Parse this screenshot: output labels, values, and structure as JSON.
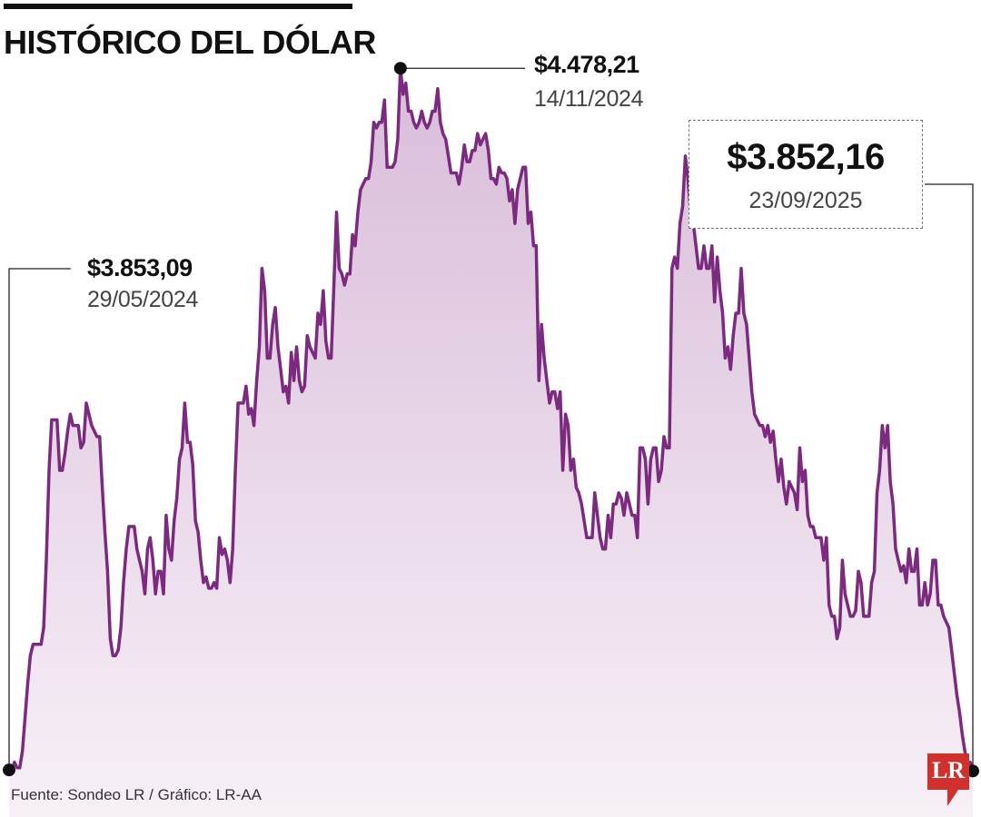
{
  "title": "HISTÓRICO DEL DÓLAR",
  "source": "Fuente: Sondeo LR / Gráfico: LR-AA",
  "logo": {
    "text": "LR",
    "color": "#d0312d"
  },
  "annotations": {
    "start": {
      "value": "$3.853,09",
      "date": "29/05/2024"
    },
    "max": {
      "value": "$4.478,21",
      "date": "14/11/2024"
    },
    "end": {
      "value": "$3.852,16",
      "date": "23/09/2025"
    }
  },
  "colors": {
    "line": "#7b2a7f",
    "fill_top": "#d9bcd9",
    "fill_bottom": "#f7f0f7"
  },
  "chart_data": {
    "type": "area",
    "title": "HISTÓRICO DEL DÓLAR",
    "xlabel": "",
    "ylabel": "",
    "x_start": "29/05/2024",
    "x_end": "23/09/2025",
    "ylim": [
      3850,
      4480
    ],
    "grid": false,
    "series": [
      {
        "values": [
          3853.09,
          3852,
          3860,
          3855,
          3855,
          3870,
          3900,
          3930,
          3955,
          3965,
          3965,
          3965,
          3965,
          3980,
          4040,
          4120,
          4165,
          4165,
          4165,
          4120,
          4120,
          4135,
          4155,
          4170,
          4160,
          4160,
          4160,
          4140,
          4145,
          4180,
          4170,
          4160,
          4155,
          4150,
          4150,
          4105,
          4065,
          4030,
          3970,
          3955,
          3955,
          3960,
          3980,
          4020,
          4050,
          4070,
          4070,
          4070,
          4050,
          4040,
          4030,
          4010,
          4050,
          4060,
          4040,
          4010,
          4030,
          4030,
          4010,
          4080,
          4050,
          4040,
          4075,
          4095,
          4130,
          4140,
          4180,
          4145,
          4145,
          4125,
          4075,
          4065,
          4040,
          4020,
          4025,
          4015,
          4015,
          4020,
          4015,
          4060,
          4045,
          4050,
          4040,
          4020,
          4050,
          4120,
          4180,
          4180,
          4180,
          4195,
          4170,
          4175,
          4160,
          4200,
          4230,
          4300,
          4280,
          4220,
          4220,
          4250,
          4265,
          4230,
          4210,
          4190,
          4195,
          4180,
          4225,
          4200,
          4230,
          4200,
          4190,
          4195,
          4240,
          4230,
          4225,
          4220,
          4260,
          4250,
          4280,
          4235,
          4220,
          4220,
          4285,
          4350,
          4300,
          4295,
          4285,
          4295,
          4295,
          4330,
          4320,
          4350,
          4370,
          4375,
          4380,
          4380,
          4395,
          4430,
          4425,
          4430,
          4430,
          4450,
          4390,
          4390,
          4390,
          4395,
          4415,
          4478.21,
          4455,
          4465,
          4440,
          4440,
          4430,
          4425,
          4430,
          4440,
          4430,
          4425,
          4430,
          4440,
          4440,
          4460,
          4430,
          4420,
          4415,
          4400,
          4385,
          4385,
          4385,
          4375,
          4390,
          4410,
          4395,
          4395,
          4405,
          4405,
          4420,
          4410,
          4415,
          4420,
          4405,
          4380,
          4380,
          4375,
          4390,
          4385,
          4385,
          4380,
          4360,
          4370,
          4340,
          4370,
          4380,
          4390,
          4390,
          4340,
          4350,
          4320,
          4320,
          4200,
          4250,
          4220,
          4200,
          4180,
          4190,
          4190,
          4175,
          4190,
          4120,
          4170,
          4160,
          4120,
          4130,
          4105,
          4100,
          4090,
          4075,
          4060,
          4060,
          4060,
          4100,
          4080,
          4060,
          4050,
          4050,
          4080,
          4060,
          4090,
          4090,
          4100,
          4095,
          4080,
          4100,
          4090,
          4080,
          4080,
          4060,
          4140,
          4140,
          4130,
          4090,
          4130,
          4140,
          4140,
          4110,
          4120,
          4150,
          4140,
          4140,
          4300,
          4310,
          4300,
          4340,
          4355,
          4400,
          4380,
          4350,
          4340,
          4320,
          4300,
          4300,
          4320,
          4300,
          4300,
          4320,
          4270,
          4310,
          4280,
          4260,
          4220,
          4230,
          4210,
          4240,
          4260,
          4260,
          4300,
          4260,
          4250,
          4220,
          4190,
          4170,
          4165,
          4160,
          4160,
          4150,
          4160,
          4145,
          4155,
          4130,
          4110,
          4130,
          4105,
          4090,
          4110,
          4105,
          4100,
          4085,
          4140,
          4110,
          4120,
          4080,
          4070,
          4070,
          4060,
          4060,
          4060,
          4040,
          4060,
          4000,
          3990,
          3990,
          3970,
          3980,
          4040,
          4010,
          4000,
          3990,
          3990,
          3995,
          4030,
          4020,
          3990,
          3990,
          3990,
          4020,
          4030,
          4100,
          4120,
          4160,
          4140,
          4160,
          4110,
          4090,
          4050,
          4040,
          4030,
          4035,
          4020,
          4050,
          4030,
          4030,
          4050,
          4000,
          4000,
          4020,
          4000,
          4010,
          4040,
          4040,
          4000,
          4000,
          3990,
          3985,
          3980,
          3960,
          3940,
          3920,
          3905,
          3885,
          3870,
          3860,
          3860,
          3852.16
        ]
      }
    ]
  }
}
